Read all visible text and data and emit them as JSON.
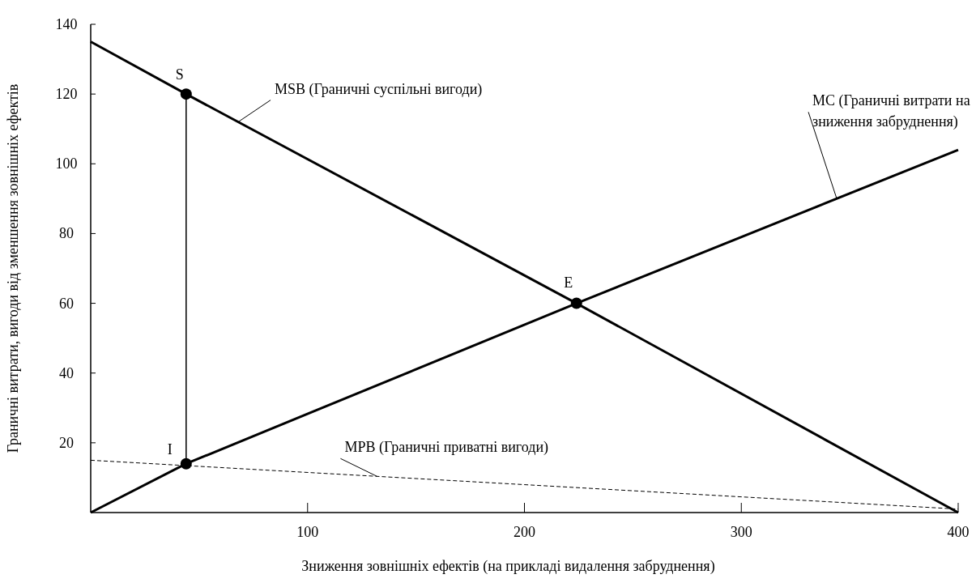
{
  "chart_data": {
    "type": "line",
    "xlabel": "Зниження зовнішніх ефектів (на прикладі видалення забруднення)",
    "ylabel": "Граничні витрати, вигоди від зменшення зовнішніх ефектів",
    "xlim": [
      0,
      400
    ],
    "ylim": [
      0,
      140
    ],
    "xticks": [
      100,
      200,
      300,
      400
    ],
    "yticks": [
      20,
      40,
      60,
      80,
      100,
      120,
      140
    ],
    "grid": false,
    "series": [
      {
        "name": "MSB (Граничні суспільні вигоди)",
        "color": "#000000",
        "x": [
          0,
          44,
          224,
          400
        ],
        "values": [
          135,
          120,
          60,
          0
        ]
      },
      {
        "name": "MC (Граничні витрати на зниження забруднення)",
        "color": "#000000",
        "x": [
          0,
          44,
          224,
          400
        ],
        "values": [
          0,
          14,
          60,
          104
        ]
      },
      {
        "name": "MPB (Граничні приватні вигоди)",
        "color": "#000000",
        "line_style": "dashed",
        "x": [
          0,
          400
        ],
        "values": [
          15,
          1
        ]
      },
      {
        "color": "#000000",
        "x": [
          44,
          44
        ],
        "values": [
          14,
          120
        ]
      },
      {
        "type": "scatter",
        "marker": "circle",
        "color": "#000000",
        "x": [
          44,
          44,
          224
        ],
        "values": [
          120,
          14,
          60
        ]
      }
    ],
    "annotations": [
      "S",
      "I",
      "E"
    ]
  }
}
